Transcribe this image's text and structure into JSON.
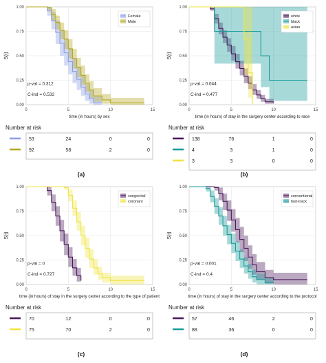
{
  "chart_data": [
    {
      "type": "line",
      "subtype": "kaplan-meier",
      "panel_label": "(a)",
      "xlabel": "time (in hours) by sex",
      "ylabel": "S(t)",
      "xlim": [
        0,
        15
      ],
      "ylim": [
        0,
        1
      ],
      "x_ticks": [
        "0",
        "5",
        "10",
        "15"
      ],
      "y_ticks": [
        "0.00",
        "0.25",
        "0.50",
        "0.75",
        "1.00"
      ],
      "grid": true,
      "legend": "top-right",
      "pval_label": "p-val = 0.312",
      "cind_label": "C-ind = 0.532",
      "series": [
        {
          "name": "Female",
          "color": "#8c9ee8",
          "x": [
            0,
            2,
            2.5,
            3,
            3.5,
            4,
            4.5,
            5,
            5.5,
            6,
            6.5,
            7,
            7.5,
            8,
            9
          ],
          "y": [
            1.0,
            1.0,
            0.96,
            0.86,
            0.74,
            0.63,
            0.53,
            0.44,
            0.34,
            0.26,
            0.18,
            0.11,
            0.06,
            0.02,
            0.02
          ],
          "lower": [
            1.0,
            1.0,
            0.91,
            0.77,
            0.62,
            0.5,
            0.4,
            0.31,
            0.22,
            0.15,
            0.09,
            0.04,
            0.01,
            0.0,
            0.0
          ],
          "upper": [
            1.0,
            1.0,
            1.0,
            0.95,
            0.86,
            0.76,
            0.67,
            0.58,
            0.48,
            0.39,
            0.3,
            0.22,
            0.15,
            0.09,
            0.09
          ]
        },
        {
          "name": "Male",
          "color": "#b5a823",
          "x": [
            0,
            2.5,
            3,
            3.5,
            4,
            4.5,
            5,
            5.5,
            6,
            6.5,
            7,
            7.5,
            8,
            9,
            10,
            14
          ],
          "y": [
            1.0,
            0.99,
            0.92,
            0.84,
            0.76,
            0.67,
            0.57,
            0.47,
            0.38,
            0.3,
            0.22,
            0.15,
            0.09,
            0.05,
            0.02,
            0.02
          ],
          "lower": [
            1.0,
            0.97,
            0.86,
            0.77,
            0.67,
            0.57,
            0.47,
            0.37,
            0.28,
            0.2,
            0.13,
            0.07,
            0.03,
            0.01,
            0.0,
            0.0
          ],
          "upper": [
            1.0,
            1.0,
            0.98,
            0.91,
            0.84,
            0.76,
            0.67,
            0.57,
            0.48,
            0.4,
            0.31,
            0.24,
            0.17,
            0.11,
            0.07,
            0.07
          ]
        }
      ],
      "risk_table": {
        "title": "Number at risk",
        "rows": [
          [
            "53",
            "24",
            "0",
            "0"
          ],
          [
            "92",
            "58",
            "2",
            "0"
          ]
        ]
      }
    },
    {
      "type": "line",
      "subtype": "kaplan-meier",
      "panel_label": "(b)",
      "xlabel": "time (in hours) of stay in the surgery center according to race",
      "ylabel": "S(t)",
      "xlim": [
        0,
        15
      ],
      "ylim": [
        0,
        1
      ],
      "x_ticks": [
        "0",
        "5",
        "10",
        "15"
      ],
      "y_ticks": [
        "0.00",
        "0.25",
        "0.50",
        "0.75",
        "1.00"
      ],
      "grid": true,
      "legend": "top-right",
      "pval_label": "p-val = 0.044",
      "cind_label": "C-ind = 0.477",
      "series": [
        {
          "name": "white",
          "color": "#4b1a5c",
          "x": [
            0,
            2.5,
            3,
            3.5,
            4,
            4.5,
            5,
            5.5,
            6,
            6.5,
            7,
            7.5,
            8,
            8.5,
            9,
            10
          ],
          "y": [
            1.0,
            0.98,
            0.88,
            0.78,
            0.69,
            0.61,
            0.52,
            0.44,
            0.37,
            0.29,
            0.22,
            0.15,
            0.1,
            0.06,
            0.03,
            0.02
          ],
          "lower": [
            1.0,
            0.96,
            0.83,
            0.72,
            0.63,
            0.54,
            0.45,
            0.37,
            0.3,
            0.22,
            0.16,
            0.1,
            0.06,
            0.03,
            0.01,
            0.0
          ],
          "upper": [
            1.0,
            1.0,
            0.93,
            0.84,
            0.76,
            0.68,
            0.6,
            0.52,
            0.45,
            0.37,
            0.29,
            0.21,
            0.15,
            0.1,
            0.06,
            0.05
          ]
        },
        {
          "name": "black",
          "color": "#1a9c9c",
          "x": [
            0,
            3,
            5,
            8.5,
            9.5,
            14
          ],
          "y": [
            1.0,
            0.75,
            0.75,
            0.5,
            0.25,
            0.25
          ],
          "lower": [
            1.0,
            0.42,
            0.42,
            0.18,
            0.04,
            0.04
          ],
          "upper": [
            1.0,
            1.0,
            1.0,
            1.0,
            1.0,
            1.0
          ]
        },
        {
          "name": "asian",
          "color": "#f0e442",
          "x": [
            0,
            6.5,
            7,
            7.5
          ],
          "y": [
            1.0,
            0.67,
            0.33,
            0.0
          ],
          "lower": [
            1.0,
            0.3,
            0.07,
            0.0
          ],
          "upper": [
            1.0,
            1.0,
            1.0,
            1.0
          ]
        }
      ],
      "risk_table": {
        "title": "Number at risk",
        "rows": [
          [
            "138",
            "76",
            "1",
            "0"
          ],
          [
            "4",
            "3",
            "1",
            "0"
          ],
          [
            "3",
            "3",
            "0",
            "0"
          ]
        ]
      }
    },
    {
      "type": "line",
      "subtype": "kaplan-meier",
      "panel_label": "(c)",
      "xlabel": "time (in hours) of stay in the surgery center according to the type of patient",
      "ylabel": "S(t)",
      "xlim": [
        0,
        15
      ],
      "ylim": [
        0,
        1
      ],
      "x_ticks": [
        "0",
        "5",
        "10",
        "15"
      ],
      "y_ticks": [
        "0.00",
        "0.25",
        "0.50",
        "0.75",
        "1.00"
      ],
      "grid": true,
      "legend": "top-right",
      "pval_label": "p-val = 0",
      "cind_label": "C-ind = 0.727",
      "series": [
        {
          "name": "congenital",
          "color": "#4b1a5c",
          "x": [
            0,
            2.5,
            3,
            3.5,
            4,
            4.5,
            5,
            5.5,
            6,
            6.5
          ],
          "y": [
            1.0,
            0.96,
            0.84,
            0.7,
            0.55,
            0.41,
            0.28,
            0.17,
            0.09,
            0.04
          ],
          "lower": [
            1.0,
            0.91,
            0.75,
            0.6,
            0.44,
            0.3,
            0.18,
            0.09,
            0.03,
            0.0
          ],
          "upper": [
            1.0,
            1.0,
            0.92,
            0.8,
            0.66,
            0.52,
            0.38,
            0.26,
            0.17,
            0.1
          ]
        },
        {
          "name": "coronary",
          "color": "#f0e442",
          "x": [
            0,
            4.5,
            5,
            5.5,
            6,
            6.5,
            7,
            7.5,
            8,
            8.5,
            9,
            10,
            14
          ],
          "y": [
            1.0,
            0.99,
            0.91,
            0.78,
            0.64,
            0.5,
            0.37,
            0.26,
            0.17,
            0.11,
            0.07,
            0.04,
            0.04
          ],
          "lower": [
            1.0,
            0.97,
            0.85,
            0.7,
            0.55,
            0.4,
            0.27,
            0.17,
            0.1,
            0.05,
            0.02,
            0.0,
            0.0
          ],
          "upper": [
            1.0,
            1.0,
            0.97,
            0.86,
            0.74,
            0.6,
            0.48,
            0.36,
            0.26,
            0.18,
            0.12,
            0.09,
            0.09
          ]
        }
      ],
      "risk_table": {
        "title": "Number at risk",
        "rows": [
          [
            "70",
            "12",
            "0",
            "0"
          ],
          [
            "75",
            "70",
            "2",
            "0"
          ]
        ]
      }
    },
    {
      "type": "line",
      "subtype": "kaplan-meier",
      "panel_label": "(d)",
      "xlabel": "time (in hours) of stay in the surgery center according to the protocol",
      "ylabel": "S(t)",
      "xlim": [
        0,
        15
      ],
      "ylim": [
        0,
        1
      ],
      "x_ticks": [
        "0",
        "5",
        "10",
        "15"
      ],
      "y_ticks": [
        "0.00",
        "0.25",
        "0.50",
        "0.75",
        "1.00"
      ],
      "grid": true,
      "legend": "top-right",
      "pval_label": "p-val = 0.001",
      "cind_label": "C-ind = 0.4",
      "series": [
        {
          "name": "conventional",
          "color": "#4b1a5c",
          "x": [
            0,
            3,
            3.5,
            4,
            4.5,
            5,
            5.5,
            6,
            6.5,
            7,
            7.5,
            8,
            9,
            10,
            14
          ],
          "y": [
            1.0,
            0.99,
            0.93,
            0.85,
            0.76,
            0.66,
            0.56,
            0.46,
            0.37,
            0.28,
            0.2,
            0.13,
            0.07,
            0.05,
            0.05
          ],
          "lower": [
            1.0,
            0.96,
            0.86,
            0.76,
            0.65,
            0.54,
            0.43,
            0.33,
            0.24,
            0.16,
            0.1,
            0.05,
            0.01,
            0.0,
            0.0
          ],
          "upper": [
            1.0,
            1.0,
            0.99,
            0.93,
            0.86,
            0.77,
            0.68,
            0.59,
            0.5,
            0.4,
            0.31,
            0.23,
            0.15,
            0.12,
            0.12
          ]
        },
        {
          "name": "fast-track",
          "color": "#1a9c9c",
          "x": [
            0,
            2,
            2.5,
            3,
            3.5,
            4,
            4.5,
            5,
            5.5,
            6,
            6.5,
            7,
            7.5,
            8,
            9,
            10
          ],
          "y": [
            1.0,
            0.98,
            0.9,
            0.8,
            0.7,
            0.6,
            0.51,
            0.42,
            0.34,
            0.26,
            0.19,
            0.13,
            0.08,
            0.05,
            0.02,
            0.02
          ],
          "lower": [
            1.0,
            0.95,
            0.84,
            0.72,
            0.61,
            0.5,
            0.41,
            0.32,
            0.24,
            0.17,
            0.11,
            0.06,
            0.02,
            0.0,
            0.0,
            0.0
          ],
          "upper": [
            1.0,
            1.0,
            0.96,
            0.88,
            0.79,
            0.7,
            0.61,
            0.52,
            0.44,
            0.36,
            0.28,
            0.21,
            0.15,
            0.11,
            0.07,
            0.07
          ]
        }
      ],
      "risk_table": {
        "title": "Number at risk",
        "rows": [
          [
            "57",
            "46",
            "2",
            "0"
          ],
          [
            "88",
            "36",
            "0",
            "0"
          ]
        ]
      }
    }
  ]
}
